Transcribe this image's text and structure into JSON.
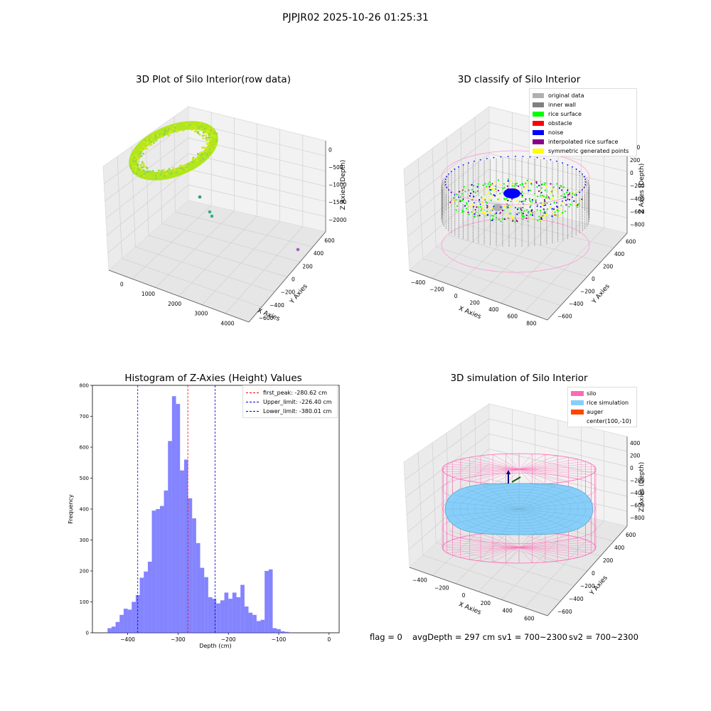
{
  "suptitle": "PJPJR02 2025-10-26 01:25:31",
  "colors": {
    "hist_bar": "#5050ff",
    "first_peak_line": "#ff0000",
    "limit_line": "#0000cc",
    "green_cloud": "#a8e61d",
    "silo": "#ff69b4",
    "rice_simulation": "#87cefa",
    "auger": "#ff4500",
    "inner_wall": "#808080",
    "rice_surface": "#00ff00",
    "noise": "#0000ff",
    "symmetric": "#ffff00",
    "interpolated": "#8b008b",
    "original": "#b0b0b0",
    "obstacle": "#ff0000"
  },
  "panels": {
    "raw": {
      "title": "3D Plot of Silo Interior(row data)",
      "xlabel": "X Axies",
      "ylabel": "Y Axies",
      "zlabel": "Z Axies (Depth)",
      "xticks": [
        "0",
        "1000",
        "2000",
        "3000",
        "4000"
      ],
      "yticks": [
        "600",
        "400",
        "200",
        "0",
        "−200",
        "−400",
        "−600"
      ],
      "zticks": [
        "0",
        "−500",
        "−1000",
        "−1500",
        "−2000"
      ]
    },
    "classify": {
      "title": "3D classify of Silo Interior",
      "xlabel": "X Axies",
      "ylabel": "Y Axies",
      "zlabel": "Z Axies (Depth)",
      "xticks": [
        "−400",
        "−200",
        "0",
        "200",
        "400",
        "600",
        "800"
      ],
      "yticks": [
        "600",
        "400",
        "200",
        "0",
        "−200",
        "−400",
        "−600"
      ],
      "zticks": [
        "400",
        "200",
        "0",
        "−200",
        "−400",
        "−600",
        "−800"
      ],
      "legend": [
        {
          "label": "original data",
          "color": "#b0b0b0"
        },
        {
          "label": "inner wall",
          "color": "#808080"
        },
        {
          "label": "rice surface",
          "color": "#00ff00"
        },
        {
          "label": "obstacle",
          "color": "#ff0000"
        },
        {
          "label": "noise",
          "color": "#0000ff"
        },
        {
          "label": "interpolated rice surface",
          "color": "#8b008b"
        },
        {
          "label": "symmetric generated points",
          "color": "#ffff00"
        }
      ]
    },
    "simulation": {
      "title": "3D simulation of Silo Interior",
      "xlabel": "X Axies",
      "ylabel": "Y Axies",
      "zlabel": "Z Axies (Depth)",
      "xticks": [
        "−400",
        "−200",
        "0",
        "200",
        "400",
        "600"
      ],
      "yticks": [
        "600",
        "400",
        "200",
        "0",
        "−200",
        "−400",
        "−600"
      ],
      "zticks": [
        "400",
        "200",
        "0",
        "−200",
        "−400",
        "−600",
        "−800"
      ],
      "legend": [
        {
          "label": "silo",
          "color": "#ff69b4"
        },
        {
          "label": "rice simulation",
          "color": "#87cefa"
        },
        {
          "label": "auger",
          "color": "#ff4500"
        },
        {
          "label": "center(100,-10)",
          "color": ""
        }
      ]
    }
  },
  "footer": {
    "flag": "flag = 0",
    "avg_depth": "avgDepth = 297 cm",
    "sv1": "sv1 = 700~2300",
    "sv2": "sv2 = 700~2300"
  },
  "chart_data": {
    "type": "bar",
    "title": "Histogram of Z-Axies (Height) Values",
    "xlabel": "Depth (cm)",
    "ylabel": "Frequency",
    "xlim": [
      -470,
      20
    ],
    "ylim": [
      0,
      800
    ],
    "xticks": [
      -400,
      -300,
      -200,
      -100,
      0
    ],
    "yticks": [
      0,
      100,
      200,
      300,
      400,
      500,
      600,
      700,
      800
    ],
    "bin_start": -440,
    "bin_width": 8,
    "values": [
      15,
      20,
      35,
      58,
      78,
      75,
      100,
      122,
      178,
      198,
      230,
      395,
      400,
      410,
      460,
      620,
      765,
      740,
      525,
      560,
      435,
      370,
      290,
      210,
      180,
      115,
      110,
      95,
      105,
      130,
      110,
      130,
      115,
      155,
      85,
      65,
      58,
      38,
      42,
      200,
      205,
      15,
      12,
      5,
      3
    ],
    "lines": [
      {
        "name": "first_peak: -280.62 cm",
        "x": -280.62,
        "color": "#ff0000"
      },
      {
        "name": "Upper_limit: -226.40 cm",
        "x": -226.4,
        "color": "#0000cc"
      },
      {
        "name": "Lower_limit: -380.01 cm",
        "x": -380.01,
        "color": "#0000cc"
      }
    ]
  }
}
